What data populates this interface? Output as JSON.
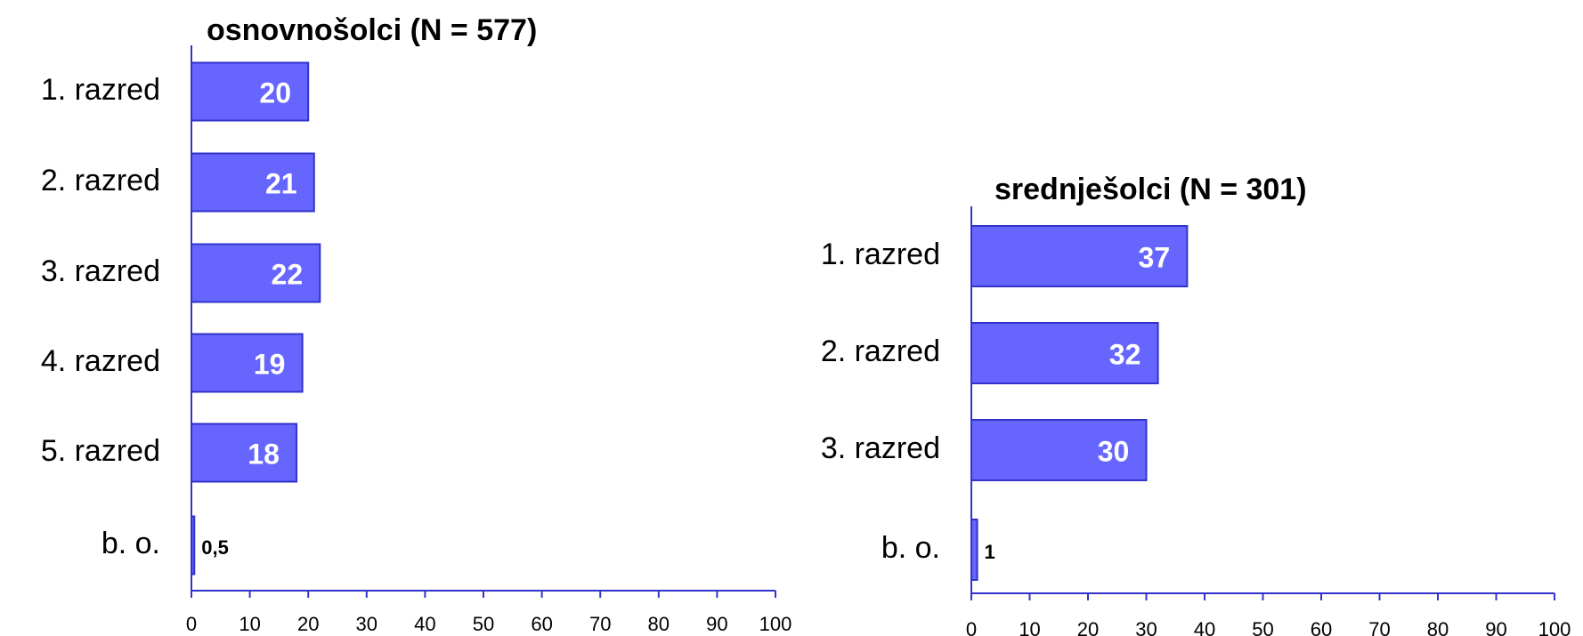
{
  "chart_data": [
    {
      "type": "bar",
      "orientation": "horizontal",
      "title": "osnovnošolci (N = 577)",
      "categories": [
        "1. razred",
        "2. razred",
        "3. razred",
        "4. razred",
        "5. razred",
        "b. o."
      ],
      "values": [
        20,
        21,
        22,
        19,
        18,
        0.5
      ],
      "value_labels": [
        "20",
        "21",
        "22",
        "19",
        "18",
        "0,5"
      ],
      "color": "#6666ff",
      "xlim": [
        0,
        100
      ],
      "xticks": [
        0,
        10,
        20,
        30,
        40,
        50,
        60,
        70,
        80,
        90,
        100
      ]
    },
    {
      "type": "bar",
      "orientation": "horizontal",
      "title": "srednješolci (N = 301)",
      "categories": [
        "1. razred",
        "2. razred",
        "3. razred",
        "b. o."
      ],
      "values": [
        37,
        32,
        30,
        1
      ],
      "value_labels": [
        "37",
        "32",
        "30",
        "1"
      ],
      "color": "#6666ff",
      "xlim": [
        0,
        100
      ],
      "xticks": [
        0,
        10,
        20,
        30,
        40,
        50,
        60,
        70,
        80,
        90,
        100
      ]
    }
  ]
}
